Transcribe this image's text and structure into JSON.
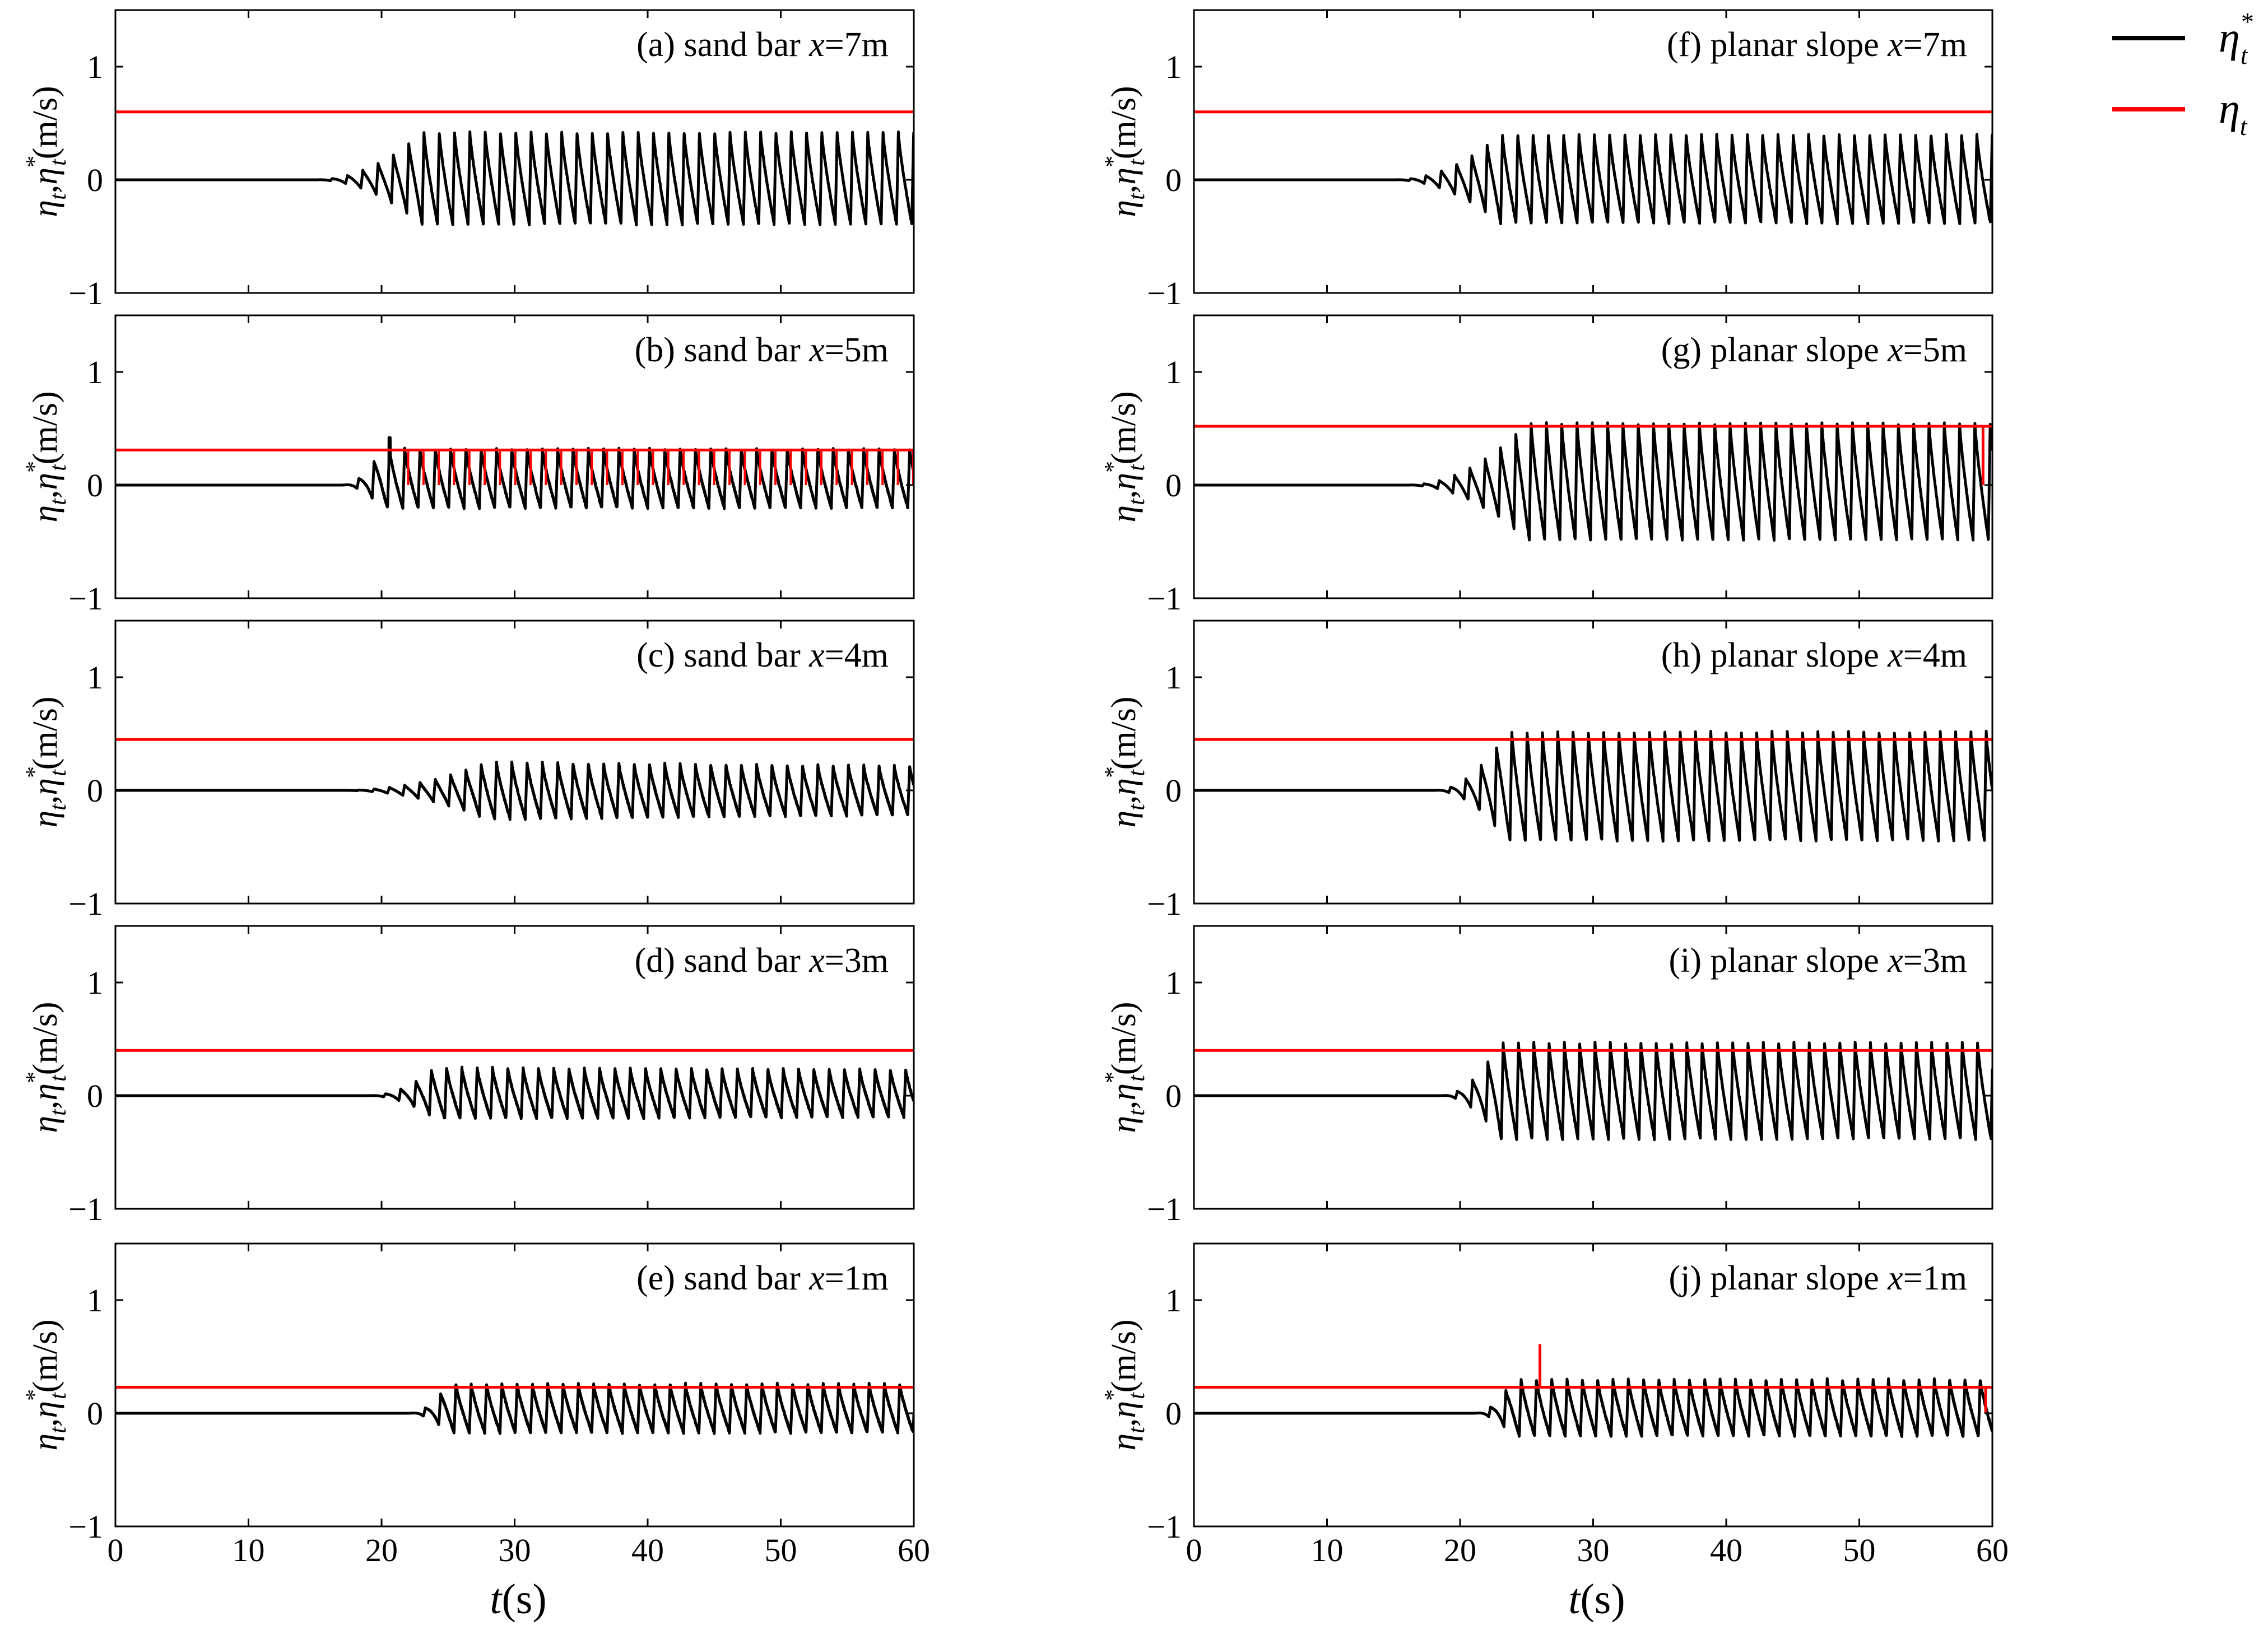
{
  "figure": {
    "legend": [
      {
        "label": "η",
        "sup": "*",
        "sub": "t",
        "color": "#000000"
      },
      {
        "label": "η",
        "sup": "",
        "sub": "t",
        "color": "#ff0000"
      }
    ],
    "xlabel_var": "t",
    "xlabel_unit": "(s)",
    "ylabel": {
      "eta": "η",
      "sub": "t",
      "comma": ",",
      "sup": "*",
      "unit": "(m/s)"
    }
  },
  "chart_data": [
    {
      "type": "line",
      "panel": "a",
      "title_pre": "(a) sand bar ",
      "title_var": "x",
      "title_post": "=7m",
      "xlim": [
        0,
        60
      ],
      "ylim": [
        -1,
        1.5
      ],
      "xticks": [
        0,
        10,
        20,
        30,
        40,
        50,
        60
      ],
      "yticks": [
        -1,
        0,
        1
      ],
      "ytick_labels": [
        "−1",
        "0",
        "1"
      ],
      "xtick_labels": [],
      "threshold": 0.6,
      "series": [
        {
          "name": "eta_t_star",
          "color": "#000000",
          "onset": 15,
          "grow_end": 23,
          "amp_max": 0.42,
          "amp_min": -0.39,
          "period": 1.15,
          "jitter": 0.02,
          "decay": 0
        },
        {
          "name": "eta_t",
          "color": "#ff0000",
          "value": 0.6
        }
      ]
    },
    {
      "type": "line",
      "panel": "b",
      "title_pre": "(b) sand bar ",
      "title_var": "x",
      "title_post": "=5m",
      "xlim": [
        0,
        60
      ],
      "ylim": [
        -1,
        1.5
      ],
      "xticks": [
        0,
        10,
        20,
        30,
        40,
        50,
        60
      ],
      "yticks": [
        -1,
        0,
        1
      ],
      "ytick_labels": [
        "−1",
        "0",
        "1"
      ],
      "xtick_labels": [],
      "threshold": 0.31,
      "series": [
        {
          "name": "eta_t_star",
          "color": "#000000",
          "onset": 17,
          "grow_end": 20,
          "amp_max": 0.32,
          "amp_min": -0.2,
          "period": 1.15,
          "jitter": 0.02,
          "decay": 0,
          "spike_at": 20.6,
          "spike_val": 0.42
        },
        {
          "name": "eta_t",
          "color": "#ff0000",
          "value": 0.31,
          "spikes": true,
          "spike_start": 22,
          "spike_end": 60,
          "spike_bottom": 0.0
        }
      ]
    },
    {
      "type": "line",
      "panel": "c",
      "title_pre": "(c) sand bar ",
      "title_var": "x",
      "title_post": "=4m",
      "xlim": [
        0,
        60
      ],
      "ylim": [
        -1,
        1.5
      ],
      "xticks": [
        0,
        10,
        20,
        30,
        40,
        50,
        60
      ],
      "yticks": [
        -1,
        0,
        1
      ],
      "ytick_labels": [
        "−1",
        "0",
        "1"
      ],
      "xtick_labels": [],
      "threshold": 0.45,
      "series": [
        {
          "name": "eta_t_star",
          "color": "#000000",
          "onset": 17,
          "grow_end": 28,
          "amp_max": 0.25,
          "amp_min": -0.25,
          "period": 1.15,
          "jitter": 0.02,
          "decay": 0.14
        },
        {
          "name": "eta_t",
          "color": "#ff0000",
          "value": 0.45
        }
      ]
    },
    {
      "type": "line",
      "panel": "d",
      "title_pre": "(d) sand bar ",
      "title_var": "x",
      "title_post": "=3m",
      "xlim": [
        0,
        60
      ],
      "ylim": [
        -1,
        1.5
      ],
      "xticks": [
        0,
        10,
        20,
        30,
        40,
        50,
        60
      ],
      "yticks": [
        -1,
        0,
        1
      ],
      "ytick_labels": [
        "−1",
        "0",
        "1"
      ],
      "xtick_labels": [],
      "threshold": 0.4,
      "series": [
        {
          "name": "eta_t_star",
          "color": "#000000",
          "onset": 19,
          "grow_end": 24,
          "amp_max": 0.25,
          "amp_min": -0.2,
          "period": 1.15,
          "jitter": 0.02,
          "decay": 0.07
        },
        {
          "name": "eta_t",
          "color": "#ff0000",
          "value": 0.4
        }
      ]
    },
    {
      "type": "line",
      "panel": "e",
      "title_pre": "(e) sand bar ",
      "title_var": "x",
      "title_post": "=1m",
      "xlim": [
        0,
        60
      ],
      "ylim": [
        -1,
        1.5
      ],
      "xticks": [
        0,
        10,
        20,
        30,
        40,
        50,
        60
      ],
      "yticks": [
        -1,
        0,
        1
      ],
      "ytick_labels": [
        "−1",
        "0",
        "1"
      ],
      "xtick_labels": [
        "0",
        "10",
        "20",
        "30",
        "40",
        "50",
        "60"
      ],
      "threshold": 0.23,
      "series": [
        {
          "name": "eta_t_star",
          "color": "#000000",
          "onset": 22,
          "grow_end": 25,
          "amp_max": 0.26,
          "amp_min": -0.17,
          "period": 1.15,
          "jitter": 0.02,
          "decay": 0
        },
        {
          "name": "eta_t",
          "color": "#ff0000",
          "value": 0.23
        }
      ]
    },
    {
      "type": "line",
      "panel": "f",
      "title_pre": "(f) planar slope ",
      "title_var": "x",
      "title_post": "=7m",
      "xlim": [
        0,
        60
      ],
      "ylim": [
        -1,
        1.5
      ],
      "xticks": [
        0,
        10,
        20,
        30,
        40,
        50,
        60
      ],
      "yticks": [
        -1,
        0,
        1
      ],
      "ytick_labels": [
        "−1",
        "0",
        "1"
      ],
      "xtick_labels": [],
      "threshold": 0.6,
      "series": [
        {
          "name": "eta_t_star",
          "color": "#000000",
          "onset": 15,
          "grow_end": 23,
          "amp_max": 0.4,
          "amp_min": -0.38,
          "period": 1.15,
          "jitter": 0.02,
          "decay": 0
        },
        {
          "name": "eta_t",
          "color": "#ff0000",
          "value": 0.6
        }
      ]
    },
    {
      "type": "line",
      "panel": "g",
      "title_pre": "(g) planar slope ",
      "title_var": "x",
      "title_post": "=5m",
      "xlim": [
        0,
        60
      ],
      "ylim": [
        -1,
        1.5
      ],
      "xticks": [
        0,
        10,
        20,
        30,
        40,
        50,
        60
      ],
      "yticks": [
        -1,
        0,
        1
      ],
      "ytick_labels": [
        "−1",
        "0",
        "1"
      ],
      "xtick_labels": [],
      "threshold": 0.52,
      "series": [
        {
          "name": "eta_t_star",
          "color": "#000000",
          "onset": 16,
          "grow_end": 25,
          "amp_max": 0.55,
          "amp_min": -0.48,
          "period": 1.15,
          "jitter": 0.02,
          "decay": 0
        },
        {
          "name": "eta_t",
          "color": "#ff0000",
          "value": 0.52,
          "drop_at": 59.3,
          "drop_to": 0.0
        }
      ]
    },
    {
      "type": "line",
      "panel": "h",
      "title_pre": "(h) planar slope ",
      "title_var": "x",
      "title_post": "=4m",
      "xlim": [
        0,
        60
      ],
      "ylim": [
        -1,
        1.5
      ],
      "xticks": [
        0,
        10,
        20,
        30,
        40,
        50,
        60
      ],
      "yticks": [
        -1,
        0,
        1
      ],
      "ytick_labels": [
        "−1",
        "0",
        "1"
      ],
      "xtick_labels": [],
      "threshold": 0.45,
      "series": [
        {
          "name": "eta_t_star",
          "color": "#000000",
          "onset": 18,
          "grow_end": 23.5,
          "amp_max": 0.52,
          "amp_min": -0.44,
          "period": 1.15,
          "jitter": 0.02,
          "decay": 0
        },
        {
          "name": "eta_t",
          "color": "#ff0000",
          "value": 0.45
        }
      ]
    },
    {
      "type": "line",
      "panel": "i",
      "title_pre": "(i) planar slope ",
      "title_var": "x",
      "title_post": "=3m",
      "xlim": [
        0,
        60
      ],
      "ylim": [
        -1,
        1.5
      ],
      "xticks": [
        0,
        10,
        20,
        30,
        40,
        50,
        60
      ],
      "yticks": [
        -1,
        0,
        1
      ],
      "ytick_labels": [
        "−1",
        "0",
        "1"
      ],
      "xtick_labels": [],
      "threshold": 0.4,
      "series": [
        {
          "name": "eta_t_star",
          "color": "#000000",
          "onset": 18.5,
          "grow_end": 23,
          "amp_max": 0.47,
          "amp_min": -0.38,
          "period": 1.15,
          "jitter": 0.02,
          "decay": 0
        },
        {
          "name": "eta_t",
          "color": "#ff0000",
          "value": 0.4
        }
      ]
    },
    {
      "type": "line",
      "panel": "j",
      "title_pre": "(j) planar slope ",
      "title_var": "x",
      "title_post": "=1m",
      "xlim": [
        0,
        60
      ],
      "ylim": [
        -1,
        1.5
      ],
      "xticks": [
        0,
        10,
        20,
        30,
        40,
        50,
        60
      ],
      "yticks": [
        -1,
        0,
        1
      ],
      "ytick_labels": [
        "−1",
        "0",
        "1"
      ],
      "xtick_labels": [
        "0",
        "10",
        "20",
        "30",
        "40",
        "50",
        "60"
      ],
      "threshold": 0.23,
      "series": [
        {
          "name": "eta_t_star",
          "color": "#000000",
          "onset": 21,
          "grow_end": 24,
          "amp_max": 0.3,
          "amp_min": -0.2,
          "period": 1.15,
          "jitter": 0.02,
          "decay": 0
        },
        {
          "name": "eta_t",
          "color": "#ff0000",
          "value": 0.23,
          "spike_at": 26,
          "spike_val": 0.61,
          "drop_at": 59.5,
          "drop_to": 0.0
        }
      ]
    }
  ]
}
